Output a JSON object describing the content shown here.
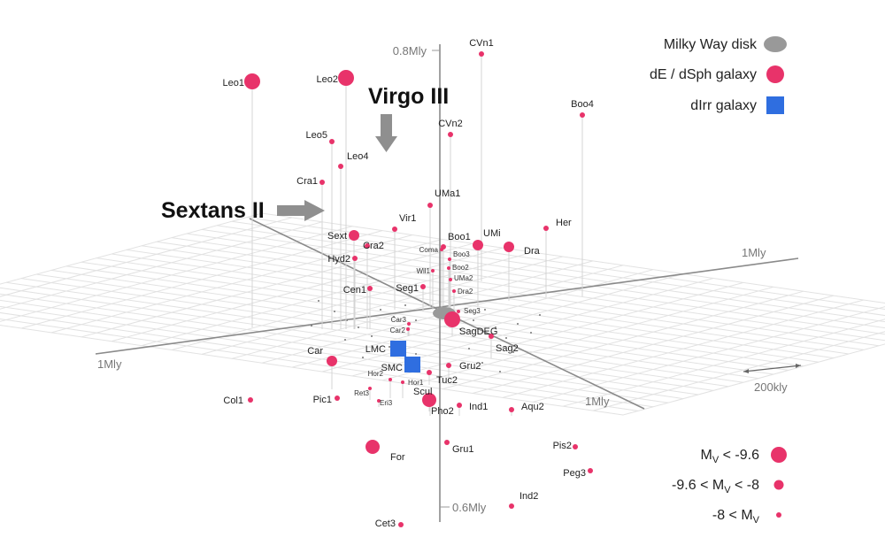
{
  "axes": {
    "z_top": "0.8Mly",
    "z_bottom": "0.6Mly",
    "x_right": "1Mly",
    "x_left": "1Mly",
    "y_front": "1Mly",
    "scale": "200kly"
  },
  "legend": {
    "types": [
      {
        "key": "disk",
        "label": "Milky Way disk",
        "color": "#999999"
      },
      {
        "key": "dsph",
        "label": "dE / dSph galaxy",
        "color": "#e8336a"
      },
      {
        "key": "dirr",
        "label": "dIrr galaxy",
        "color": "#2f6ee0"
      }
    ],
    "magnitudes": [
      {
        "main": "M",
        "sub": "V",
        "rest": "< -9.6",
        "prefix": ""
      },
      {
        "main": "M",
        "sub": "V",
        "rest": "< -8",
        "prefix": "-9.6 < "
      },
      {
        "main": "M",
        "sub": "V",
        "rest": "",
        "prefix": "-8 < "
      }
    ]
  },
  "callouts": [
    {
      "key": "virgo3",
      "label": "Virgo III"
    },
    {
      "key": "sextans2",
      "label": "Sextans II"
    }
  ],
  "galaxies": [
    {
      "key": "leo1",
      "label": "Leo1"
    },
    {
      "key": "leo2",
      "label": "Leo2"
    },
    {
      "key": "cvn1",
      "label": "CVn1"
    },
    {
      "key": "boo4",
      "label": "Boo4"
    },
    {
      "key": "cvn2",
      "label": "CVn2"
    },
    {
      "key": "leo5",
      "label": "Leo5"
    },
    {
      "key": "leo4",
      "label": "Leo4"
    },
    {
      "key": "cra1",
      "label": "Cra1"
    },
    {
      "key": "uma1",
      "label": "UMa1"
    },
    {
      "key": "vir1",
      "label": "Vir1"
    },
    {
      "key": "her",
      "label": "Her"
    },
    {
      "key": "sext",
      "label": "Sext"
    },
    {
      "key": "cra2",
      "label": "Cra2"
    },
    {
      "key": "boo1",
      "label": "Boo1"
    },
    {
      "key": "umi",
      "label": "UMi"
    },
    {
      "key": "dra",
      "label": "Dra"
    },
    {
      "key": "hyd2",
      "label": "Hyd2"
    },
    {
      "key": "coma",
      "label": "Coma"
    },
    {
      "key": "boo3",
      "label": "Boo3"
    },
    {
      "key": "will1",
      "label": "Wil1"
    },
    {
      "key": "boo2",
      "label": "Boo2"
    },
    {
      "key": "uma2",
      "label": "UMa2"
    },
    {
      "key": "seg1",
      "label": "Seg1"
    },
    {
      "key": "dra2",
      "label": "Dra2"
    },
    {
      "key": "cen1",
      "label": "Cen1"
    },
    {
      "key": "seg3",
      "label": "Seg3"
    },
    {
      "key": "car3",
      "label": "Car3"
    },
    {
      "key": "car2",
      "label": "Car2"
    },
    {
      "key": "sagdeg",
      "label": "SagDEG"
    },
    {
      "key": "lmc",
      "label": "LMC"
    },
    {
      "key": "car",
      "label": "Car"
    },
    {
      "key": "smc",
      "label": "SMC"
    },
    {
      "key": "sag2",
      "label": "Sag2"
    },
    {
      "key": "gru2",
      "label": "Gru2"
    },
    {
      "key": "tuc2",
      "label": "Tuc2"
    },
    {
      "key": "hor2",
      "label": "Hor2"
    },
    {
      "key": "hor1",
      "label": "Hor1"
    },
    {
      "key": "ret3",
      "label": "Ret3"
    },
    {
      "key": "col1",
      "label": "Col1"
    },
    {
      "key": "pic1",
      "label": "Pic1"
    },
    {
      "key": "eri3",
      "label": "Eri3"
    },
    {
      "key": "scul",
      "label": "Scul"
    },
    {
      "key": "ind1",
      "label": "Ind1"
    },
    {
      "key": "aqu2",
      "label": "Aqu2"
    },
    {
      "key": "pho2",
      "label": "Pho2"
    },
    {
      "key": "for",
      "label": "For"
    },
    {
      "key": "gru1",
      "label": "Gru1"
    },
    {
      "key": "pis2",
      "label": "Pis2"
    },
    {
      "key": "peg3",
      "label": "Peg3"
    },
    {
      "key": "ind2",
      "label": "Ind2"
    },
    {
      "key": "cet3",
      "label": "Cet3"
    }
  ]
}
